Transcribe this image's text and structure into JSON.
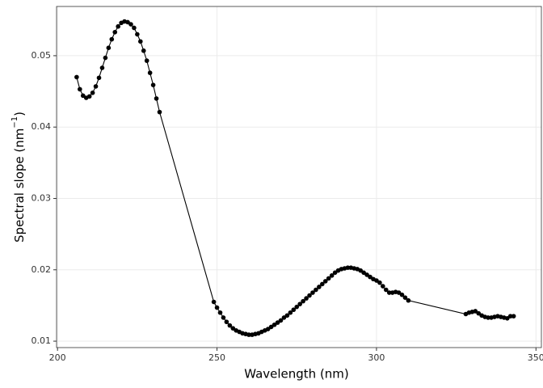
{
  "chart_data": {
    "type": "line",
    "x_label": "Wavelength (nm)",
    "y_label": "Spectral slope (nm",
    "y_label_sup": "−1",
    "y_label_end": ")",
    "x": [
      206,
      207,
      208,
      209,
      210,
      211,
      212,
      213,
      214,
      215,
      216,
      217,
      218,
      219,
      220,
      221,
      222,
      223,
      224,
      225,
      226,
      227,
      228,
      229,
      230,
      231,
      232,
      249,
      250,
      251,
      252,
      253,
      254,
      255,
      256,
      257,
      258,
      259,
      260,
      261,
      262,
      263,
      264,
      265,
      266,
      267,
      268,
      269,
      270,
      271,
      272,
      273,
      274,
      275,
      276,
      277,
      278,
      279,
      280,
      281,
      282,
      283,
      284,
      285,
      286,
      287,
      288,
      289,
      290,
      291,
      292,
      293,
      294,
      295,
      296,
      297,
      298,
      299,
      300,
      301,
      302,
      303,
      304,
      305,
      306,
      307,
      308,
      309,
      310,
      328,
      329,
      330,
      331,
      332,
      333,
      334,
      335,
      336,
      337,
      338,
      339,
      340,
      341,
      342,
      343
    ],
    "series": [
      {
        "color": "#000000",
        "values": [
          0.047,
          0.0453,
          0.0444,
          0.0441,
          0.0443,
          0.0448,
          0.0457,
          0.0469,
          0.0483,
          0.0497,
          0.0511,
          0.0523,
          0.0533,
          0.0541,
          0.0546,
          0.0548,
          0.0547,
          0.0544,
          0.0539,
          0.053,
          0.052,
          0.0507,
          0.0493,
          0.0476,
          0.0459,
          0.044,
          0.0421,
          0.0155,
          0.0147,
          0.014,
          0.0133,
          0.0127,
          0.0122,
          0.0118,
          0.0115,
          0.0113,
          0.0111,
          0.011,
          0.0109,
          0.0109,
          0.011,
          0.0111,
          0.0113,
          0.0115,
          0.0117,
          0.012,
          0.0123,
          0.0126,
          0.0129,
          0.0133,
          0.0136,
          0.014,
          0.0144,
          0.0148,
          0.0152,
          0.0156,
          0.016,
          0.0164,
          0.0168,
          0.0172,
          0.0176,
          0.018,
          0.0184,
          0.0188,
          0.0192,
          0.0196,
          0.0199,
          0.0201,
          0.0202,
          0.0203,
          0.0203,
          0.0202,
          0.0201,
          0.0199,
          0.0196,
          0.0193,
          0.019,
          0.0187,
          0.0185,
          0.0182,
          0.0177,
          0.0172,
          0.0168,
          0.0168,
          0.0169,
          0.0168,
          0.0165,
          0.0161,
          0.0157,
          0.0138,
          0.014,
          0.0141,
          0.0142,
          0.0139,
          0.0136,
          0.0134,
          0.0133,
          0.0133,
          0.0134,
          0.0135,
          0.0134,
          0.0133,
          0.0132,
          0.0135,
          0.0135
        ]
      }
    ],
    "xlim": [
      199.7,
      351.7
    ],
    "ylim": [
      0.0091,
      0.0569
    ],
    "xticks": [
      200,
      250,
      300,
      350
    ],
    "yticks": [
      0.01,
      0.02,
      0.03,
      0.04,
      0.05
    ],
    "grid": true
  }
}
